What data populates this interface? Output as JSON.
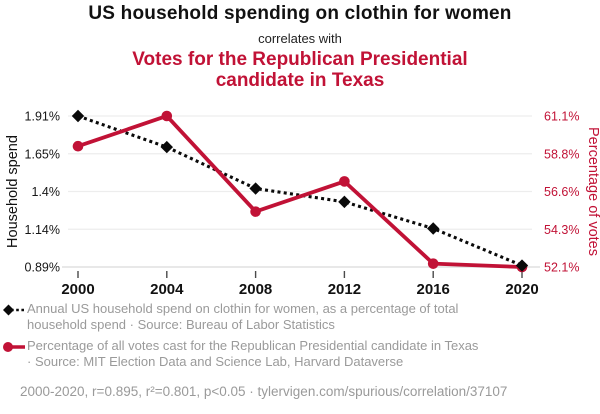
{
  "titles": {
    "main": "US household spending on clothin for women",
    "connector": "correlates with",
    "secondary_lines": [
      "Votes for the Republican Presidential",
      "candidate in Texas"
    ]
  },
  "colors": {
    "accent_red": "#c11236",
    "series_black": "#0a0a0a",
    "legend_gray": "#9a9a9a",
    "gridline": "#ededed",
    "axis_line": "#d9d9d9"
  },
  "chart_data": {
    "type": "line",
    "x": [
      2000,
      2004,
      2008,
      2012,
      2016,
      2020
    ],
    "x_tick_labels": [
      "2000",
      "2004",
      "2008",
      "2012",
      "2016",
      "2020"
    ],
    "left_axis": {
      "label": "Household spend",
      "tick_labels": [
        "1.91%",
        "1.65%",
        "1.4%",
        "1.14%",
        "0.89%"
      ],
      "tick_values": [
        1.91,
        1.65,
        1.4,
        1.14,
        0.89
      ],
      "range": [
        0.89,
        1.91
      ]
    },
    "right_axis": {
      "label": "Percentage of votes",
      "tick_labels": [
        "61.1%",
        "58.8%",
        "56.6%",
        "54.3%",
        "52.1%"
      ],
      "tick_values": [
        61.1,
        58.8,
        56.6,
        54.3,
        52.1
      ],
      "range": [
        52.1,
        61.1
      ]
    },
    "series": [
      {
        "name": "household-spend",
        "axis": "left",
        "color": "#0a0a0a",
        "line_style": "dashed",
        "marker": "diamond",
        "values": [
          1.91,
          1.7,
          1.42,
          1.33,
          1.15,
          0.9
        ]
      },
      {
        "name": "republican-votes",
        "axis": "right",
        "color": "#c11236",
        "line_style": "solid",
        "marker": "circle",
        "values": [
          59.3,
          61.1,
          55.4,
          57.2,
          52.3,
          52.1
        ]
      }
    ],
    "grid": true,
    "legend_position": "bottom"
  },
  "legend": {
    "items": [
      {
        "series": "household-spend",
        "lines": [
          "Annual US household spend on clothin for women, as a percentage of total",
          "household spend · Source: Bureau of Labor Statistics"
        ]
      },
      {
        "series": "republican-votes",
        "lines": [
          "Percentage of all votes cast for the Republican Presidential candidate in Texas",
          "· Source: MIT Election Data and Science Lab, Harvard Dataverse"
        ]
      }
    ]
  },
  "footer": {
    "text": "2000-2020, r=0.895, r²=0.801, p<0.05 · tylervigen.com/spurious/correlation/37107"
  }
}
